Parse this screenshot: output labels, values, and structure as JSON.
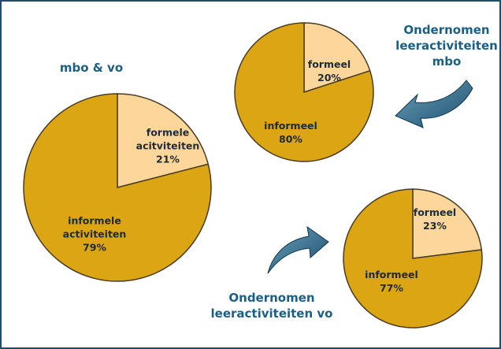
{
  "chart_data": [
    {
      "type": "pie",
      "title": "mbo & vo",
      "categories": [
        "formele acitviteiten",
        "informele activiteiten"
      ],
      "values": [
        21,
        79
      ],
      "value_labels": [
        "21%",
        "79%"
      ],
      "colors": [
        "#fcd69a",
        "#dba514"
      ]
    },
    {
      "type": "pie",
      "title": "Ondernomen leeractiviteiten mbo",
      "categories": [
        "formeel",
        "informeel"
      ],
      "values": [
        20,
        80
      ],
      "value_labels": [
        "20%",
        "80%"
      ],
      "colors": [
        "#fcd69a",
        "#dba514"
      ]
    },
    {
      "type": "pie",
      "title": "Ondernomen leeractiviteiten vo",
      "categories": [
        "formeel",
        "informeel"
      ],
      "values": [
        23,
        77
      ],
      "value_labels": [
        "23%",
        "77%"
      ],
      "colors": [
        "#fcd69a",
        "#dba514"
      ]
    }
  ]
}
